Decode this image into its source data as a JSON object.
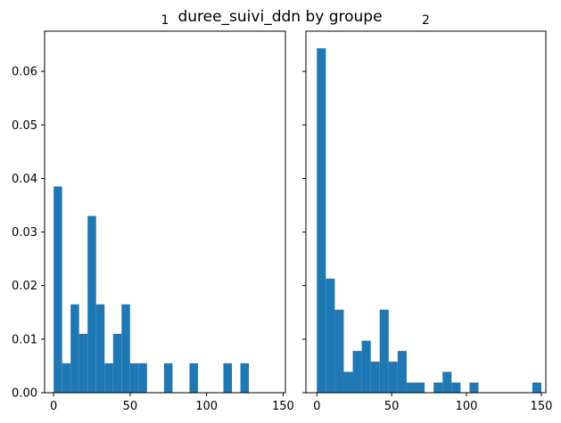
{
  "figure": {
    "suptitle": "duree_suivi_ddn by groupe"
  },
  "chart_data": [
    {
      "type": "bar",
      "title": "1",
      "xlabel": "",
      "ylabel": "",
      "xlim": [
        -5.9,
        151.5
      ],
      "ylim": [
        0,
        0.0675
      ],
      "xticks": [
        0,
        50,
        100,
        150
      ],
      "yticks": [
        0.0,
        0.01,
        0.02,
        0.03,
        0.04,
        0.05,
        0.06
      ],
      "ytick_labels": [
        "0.00",
        "0.01",
        "0.02",
        "0.03",
        "0.04",
        "0.05",
        "0.06"
      ],
      "bin_width": 5.55,
      "bin_start": 0,
      "values": [
        0.0385,
        0.0055,
        0.0165,
        0.011,
        0.033,
        0.0165,
        0.0055,
        0.011,
        0.0165,
        0.0055,
        0.0055,
        0.0,
        0.0,
        0.0055,
        0.0,
        0.0,
        0.0055,
        0.0,
        0.0,
        0.0,
        0.0055,
        0.0,
        0.0055
      ]
    },
    {
      "type": "bar",
      "title": "2",
      "xlabel": "",
      "ylabel": "",
      "xlim": [
        -7.3,
        153
      ],
      "ylim": [
        0,
        0.0675
      ],
      "xticks": [
        0,
        50,
        100,
        150
      ],
      "yticks": [
        0.0,
        0.01,
        0.02,
        0.03,
        0.04,
        0.05,
        0.06
      ],
      "bin_width": 6.0,
      "bin_start": 0,
      "values": [
        0.0643,
        0.0213,
        0.0155,
        0.0039,
        0.0078,
        0.0097,
        0.0058,
        0.0155,
        0.0058,
        0.0078,
        0.0019,
        0.0019,
        0.0,
        0.0019,
        0.0039,
        0.0019,
        0.0,
        0.0019,
        0.0,
        0.0,
        0.0,
        0.0,
        0.0,
        0.0,
        0.0019
      ]
    }
  ],
  "colors": {
    "bar": "#1f77b4",
    "axes": "#000000",
    "background": "#ffffff"
  }
}
